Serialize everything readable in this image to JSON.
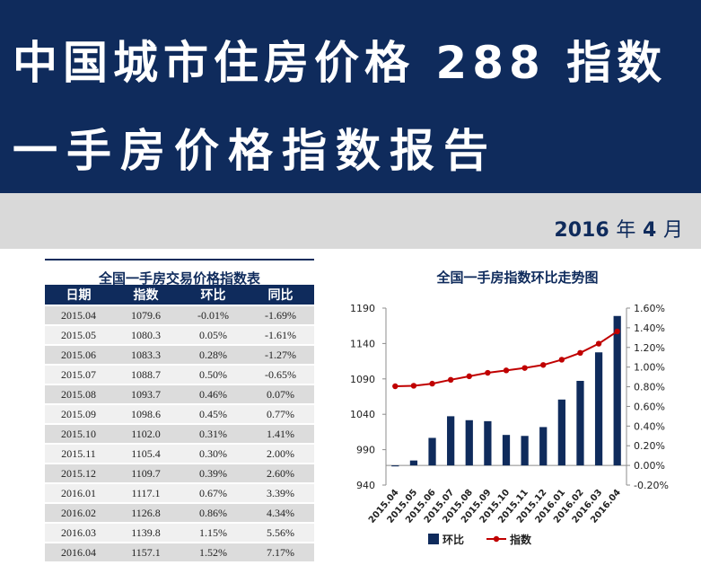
{
  "header": {
    "title_line1": "中国城市住房价格 288 指数",
    "title_line2": "一手房价格指数报告"
  },
  "date": {
    "year": "2016",
    "year_unit": "年",
    "month": "4",
    "month_unit": "月"
  },
  "table": {
    "title": "全国一手房交易价格指数表",
    "columns": [
      "日期",
      "指数",
      "环比",
      "同比"
    ],
    "rows": [
      [
        "2015.04",
        "1079.6",
        "-0.01%",
        "-1.69%"
      ],
      [
        "2015.05",
        "1080.3",
        "0.05%",
        "-1.61%"
      ],
      [
        "2015.06",
        "1083.3",
        "0.28%",
        "-1.27%"
      ],
      [
        "2015.07",
        "1088.7",
        "0.50%",
        "-0.65%"
      ],
      [
        "2015.08",
        "1093.7",
        "0.46%",
        "0.07%"
      ],
      [
        "2015.09",
        "1098.6",
        "0.45%",
        "0.77%"
      ],
      [
        "2015.10",
        "1102.0",
        "0.31%",
        "1.41%"
      ],
      [
        "2015.11",
        "1105.4",
        "0.30%",
        "2.00%"
      ],
      [
        "2015.12",
        "1109.7",
        "0.39%",
        "2.60%"
      ],
      [
        "2016.01",
        "1117.1",
        "0.67%",
        "3.39%"
      ],
      [
        "2016.02",
        "1126.8",
        "0.86%",
        "4.34%"
      ],
      [
        "2016.03",
        "1139.8",
        "1.15%",
        "5.56%"
      ],
      [
        "2016.04",
        "1157.1",
        "1.52%",
        "7.17%"
      ]
    ]
  },
  "colors": {
    "navy": "#0f2b5c",
    "band_gray": "#d9d9d9",
    "line_red": "#c00000"
  },
  "chart_data": {
    "type": "bar",
    "title": "全国一手房指数环比走势图",
    "categories": [
      "2015.04",
      "2015.05",
      "2015.06",
      "2015.07",
      "2015.08",
      "2015.09",
      "2015.10",
      "2015.11",
      "2015.12",
      "2016.01",
      "2016.02",
      "2016.03",
      "2016.04"
    ],
    "series": [
      {
        "name": "环比",
        "type": "bar",
        "axis": "right",
        "values": [
          -0.01,
          0.05,
          0.28,
          0.5,
          0.46,
          0.45,
          0.31,
          0.3,
          0.39,
          0.67,
          0.86,
          1.15,
          1.52
        ]
      },
      {
        "name": "指数",
        "type": "line",
        "axis": "left",
        "values": [
          1079.6,
          1080.3,
          1083.3,
          1088.7,
          1093.7,
          1098.6,
          1102.0,
          1105.4,
          1109.7,
          1117.1,
          1126.8,
          1139.8,
          1157.1
        ]
      }
    ],
    "y_left": {
      "min": 940,
      "max": 1190,
      "ticks": [
        "1190",
        "1140",
        "1090",
        "1040",
        "990",
        "940"
      ]
    },
    "y_right": {
      "min": -0.2,
      "max": 1.6,
      "ticks": [
        "1.60%",
        "1.40%",
        "1.20%",
        "1.00%",
        "0.80%",
        "0.60%",
        "0.40%",
        "0.20%",
        "0.00%",
        "-0.20%"
      ]
    },
    "legend": {
      "position": "bottom",
      "labels": [
        "环比",
        "指数"
      ]
    }
  }
}
